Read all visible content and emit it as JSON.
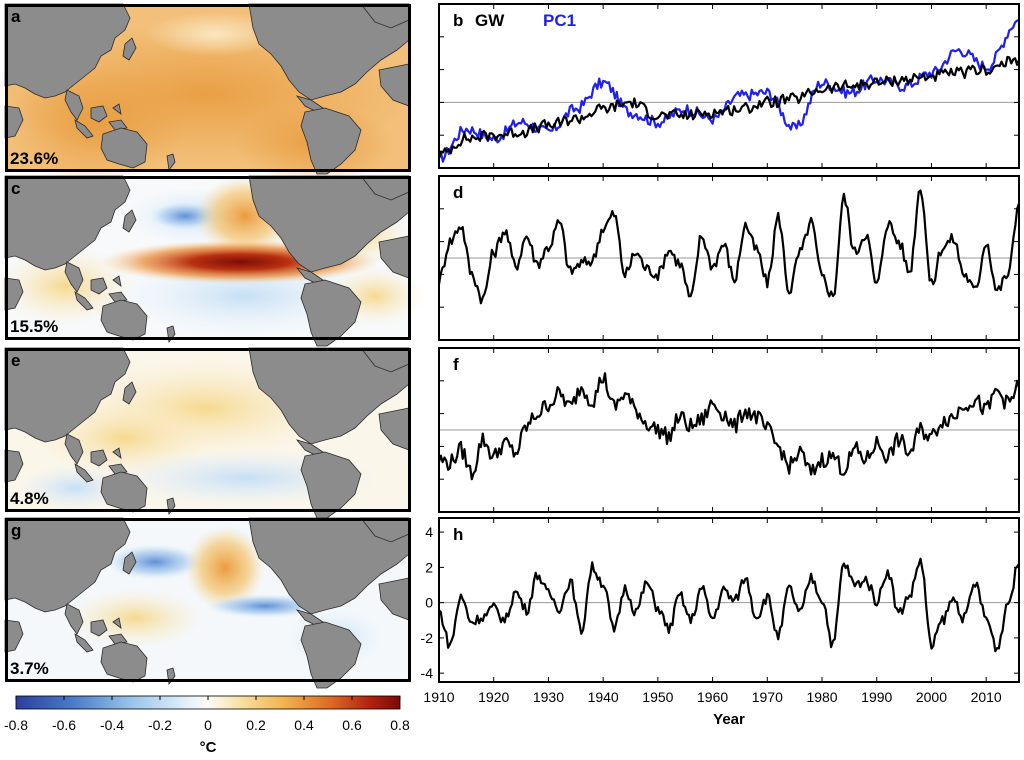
{
  "colors": {
    "land": "#8c8c8c",
    "ocean_neutral": "#f7f9fb",
    "gw_line": "#000000",
    "pc1_line": "#1f1ff0",
    "zero_line": "#9a9a9a"
  },
  "maps": [
    {
      "label": "a",
      "variance_pct": "23.6%",
      "pattern": "global-warming"
    },
    {
      "label": "c",
      "variance_pct": "15.5%",
      "pattern": "enso"
    },
    {
      "label": "e",
      "variance_pct": "4.8%",
      "pattern": "multidecadal"
    },
    {
      "label": "g",
      "variance_pct": "3.7%",
      "pattern": "pacific-meridional"
    }
  ],
  "colorbar": {
    "ticks": [
      "-0.8",
      "-0.6",
      "-0.4",
      "-0.2",
      "0",
      "0.2",
      "0.4",
      "0.6",
      "0.8"
    ],
    "unit": "°C",
    "range": [
      -0.8,
      0.8
    ]
  },
  "chart_data": [
    {
      "type": "line",
      "panel": "b",
      "x_range": [
        1910,
        2016
      ],
      "series": [
        {
          "name": "GW",
          "color": "#000000",
          "x": [
            1910,
            1915,
            1920,
            1925,
            1930,
            1935,
            1940,
            1945,
            1950,
            1955,
            1960,
            1965,
            1970,
            1975,
            1980,
            1985,
            1990,
            1995,
            2000,
            2005,
            2010,
            2016
          ],
          "y": [
            -1.6,
            -1.1,
            -1.0,
            -0.9,
            -0.7,
            -0.5,
            -0.2,
            0.0,
            -0.4,
            -0.4,
            -0.3,
            -0.2,
            0.0,
            0.1,
            0.4,
            0.5,
            0.6,
            0.7,
            0.8,
            0.9,
            1.0,
            1.3
          ]
        },
        {
          "name": "PC1",
          "color": "#1f1ff0",
          "x": [
            1910,
            1915,
            1920,
            1925,
            1930,
            1935,
            1940,
            1945,
            1950,
            1955,
            1960,
            1965,
            1970,
            1975,
            1980,
            1985,
            1990,
            1995,
            2000,
            2005,
            2010,
            2016
          ],
          "y": [
            -1.7,
            -0.8,
            -1.1,
            -0.6,
            -0.9,
            -0.2,
            0.6,
            -0.3,
            -0.6,
            -0.2,
            -0.5,
            0.2,
            0.3,
            -0.8,
            0.6,
            0.3,
            0.7,
            0.5,
            0.9,
            1.6,
            1.1,
            2.5
          ]
        }
      ],
      "ylim": [
        -2,
        3
      ]
    },
    {
      "type": "line",
      "panel": "d",
      "x_range": [
        1910,
        2016
      ],
      "series": [
        {
          "color": "#000000",
          "x": [
            1910,
            1912,
            1914,
            1916,
            1918,
            1920,
            1922,
            1924,
            1926,
            1928,
            1930,
            1932,
            1934,
            1936,
            1938,
            1940,
            1942,
            1944,
            1946,
            1948,
            1950,
            1952,
            1954,
            1956,
            1958,
            1960,
            1962,
            1964,
            1966,
            1968,
            1970,
            1972,
            1974,
            1976,
            1978,
            1980,
            1982,
            1984,
            1986,
            1988,
            1990,
            1992,
            1994,
            1996,
            1998,
            2000,
            2002,
            2004,
            2006,
            2008,
            2010,
            2012,
            2014,
            2016
          ],
          "y": [
            -0.8,
            0.6,
            1.2,
            -0.6,
            -1.5,
            0.2,
            1.0,
            -0.3,
            0.8,
            -0.2,
            0.4,
            1.3,
            -0.5,
            -0.2,
            -0.1,
            1.1,
            1.6,
            -0.6,
            0.2,
            -0.4,
            -0.6,
            0.3,
            -0.2,
            -1.5,
            0.8,
            -0.3,
            0.5,
            -0.8,
            1.2,
            0.3,
            -0.9,
            1.5,
            -1.2,
            0.2,
            1.3,
            -0.7,
            -1.4,
            2.2,
            0.2,
            0.9,
            -1.0,
            1.3,
            0.6,
            -0.5,
            2.6,
            -1.0,
            0.4,
            0.7,
            -0.6,
            -1.2,
            0.6,
            -1.2,
            -0.6,
            2.0
          ]
        }
      ],
      "ylim": [
        -3,
        3
      ]
    },
    {
      "type": "line",
      "panel": "f",
      "x_range": [
        1910,
        2016
      ],
      "series": [
        {
          "color": "#000000",
          "x": [
            1910,
            1912,
            1914,
            1916,
            1918,
            1920,
            1922,
            1924,
            1926,
            1928,
            1930,
            1932,
            1934,
            1936,
            1938,
            1940,
            1942,
            1944,
            1946,
            1948,
            1950,
            1952,
            1954,
            1956,
            1958,
            1960,
            1962,
            1964,
            1966,
            1968,
            1970,
            1972,
            1974,
            1976,
            1978,
            1980,
            1982,
            1984,
            1986,
            1988,
            1990,
            1992,
            1994,
            1996,
            1998,
            2000,
            2002,
            2004,
            2006,
            2008,
            2010,
            2012,
            2014,
            2016
          ],
          "y": [
            -0.9,
            -1.0,
            -0.6,
            -1.3,
            -0.3,
            -0.8,
            -0.4,
            -0.7,
            0.1,
            0.5,
            0.8,
            1.1,
            0.7,
            1.3,
            0.9,
            1.6,
            0.7,
            1.1,
            0.6,
            0.2,
            0.0,
            -0.2,
            0.4,
            0.1,
            0.3,
            0.8,
            0.5,
            0.1,
            0.6,
            0.4,
            0.0,
            -0.5,
            -1.1,
            -0.7,
            -1.3,
            -0.9,
            -0.8,
            -1.2,
            -0.6,
            -0.9,
            -0.4,
            -0.8,
            -0.3,
            -0.7,
            0.0,
            -0.2,
            0.3,
            0.4,
            0.8,
            0.9,
            0.6,
            1.2,
            0.8,
            1.3
          ]
        }
      ],
      "ylim": [
        -2.5,
        2.5
      ]
    },
    {
      "type": "line",
      "panel": "h",
      "x_range": [
        1910,
        2016
      ],
      "x_ticks": [
        1910,
        1920,
        1930,
        1940,
        1950,
        1960,
        1970,
        1980,
        1990,
        2000,
        2010
      ],
      "y_ticks": [
        4,
        2,
        0,
        -2,
        -4
      ],
      "xlabel": "Year",
      "series": [
        {
          "color": "#000000",
          "x": [
            1910,
            1912,
            1914,
            1916,
            1918,
            1920,
            1922,
            1924,
            1926,
            1928,
            1930,
            1932,
            1934,
            1936,
            1938,
            1940,
            1942,
            1944,
            1946,
            1948,
            1950,
            1952,
            1954,
            1956,
            1958,
            1960,
            1962,
            1964,
            1966,
            1968,
            1970,
            1972,
            1974,
            1976,
            1978,
            1980,
            1982,
            1984,
            1986,
            1988,
            1990,
            1992,
            1994,
            1996,
            1998,
            2000,
            2002,
            2004,
            2006,
            2008,
            2010,
            2012,
            2014,
            2016
          ],
          "y": [
            -0.5,
            -2.4,
            0.3,
            -1.1,
            -0.8,
            -0.3,
            -1.0,
            0.6,
            -0.4,
            1.6,
            0.5,
            -0.3,
            1.2,
            -1.6,
            2.0,
            1.1,
            -1.6,
            0.8,
            -0.5,
            1.1,
            -0.3,
            -1.5,
            0.4,
            -1.0,
            0.8,
            -0.9,
            0.7,
            0.1,
            1.4,
            -0.8,
            0.3,
            -1.9,
            0.8,
            -0.6,
            1.4,
            0.2,
            -2.4,
            2.2,
            1.0,
            1.3,
            0.1,
            1.8,
            -0.6,
            0.4,
            2.4,
            -2.5,
            -1.0,
            0.2,
            -0.9,
            1.1,
            -0.9,
            -2.6,
            0.0,
            2.2
          ]
        }
      ],
      "ylim": [
        -4.5,
        4.8
      ]
    }
  ]
}
